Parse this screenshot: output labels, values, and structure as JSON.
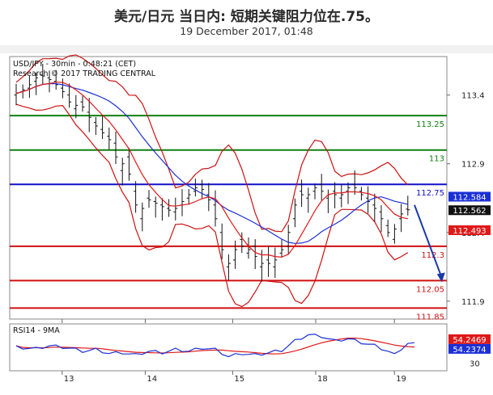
{
  "header": {
    "title": "美元/日元 当日内: 短期关键阻力位在.75。",
    "date": "19 December 2017, 01:48"
  },
  "chart_data": [
    {
      "type": "candlestick",
      "info_line1": "USD/JPY - 30min - 0:48:21 (CET)",
      "info_line2": "Research © 2017 TRADING CENTRAL",
      "y_ticks": [
        "113.4",
        "112.9",
        "112.4",
        "111.9"
      ],
      "ylim": [
        111.77,
        113.68
      ],
      "x_ticks": [
        "13",
        "14",
        "15",
        "18",
        "19"
      ],
      "levels": [
        {
          "value": 113.25,
          "label": "113.25",
          "color": "#108010"
        },
        {
          "value": 113.0,
          "label": "113",
          "color": "#108010"
        },
        {
          "value": 112.75,
          "label": "112.75",
          "color": "#1010c8"
        },
        {
          "value": 112.3,
          "label": "112.3",
          "color": "#d01010"
        },
        {
          "value": 112.05,
          "label": "112.05",
          "color": "#d01010"
        },
        {
          "value": 111.85,
          "label": "111.85",
          "color": "#d01010"
        }
      ],
      "price_tags": [
        {
          "value": 112.584,
          "label": "112.584",
          "color": "#1a2fd6"
        },
        {
          "value": 112.562,
          "label": "112.562",
          "color": "#111111"
        },
        {
          "value": 112.493,
          "label": "112.493",
          "color": "#e01818"
        }
      ],
      "projection": {
        "from": [
          60,
          112.6
        ],
        "to": [
          64,
          112.05
        ],
        "color": "#1a3aa8"
      },
      "price_path": [
        [
          0,
          113.4
        ],
        [
          2,
          113.45
        ],
        [
          4,
          113.55
        ],
        [
          6,
          113.5
        ],
        [
          8,
          113.4
        ],
        [
          9,
          113.3
        ],
        [
          10,
          113.35
        ],
        [
          12,
          113.2
        ],
        [
          14,
          113.1
        ],
        [
          15,
          113.05
        ],
        [
          16,
          112.85
        ],
        [
          17,
          112.95
        ],
        [
          18,
          112.7
        ],
        [
          19,
          112.5
        ],
        [
          20,
          112.65
        ],
        [
          22,
          112.6
        ],
        [
          24,
          112.55
        ],
        [
          26,
          112.65
        ],
        [
          28,
          112.75
        ],
        [
          30,
          112.6
        ],
        [
          31,
          112.4
        ],
        [
          32,
          112.15
        ],
        [
          33,
          112.2
        ],
        [
          34,
          112.35
        ],
        [
          35,
          112.25
        ],
        [
          36,
          112.3
        ],
        [
          37,
          112.15
        ],
        [
          38,
          112.2
        ],
        [
          39,
          112.15
        ],
        [
          40,
          112.25
        ],
        [
          41,
          112.3
        ],
        [
          42,
          112.5
        ],
        [
          43,
          112.7
        ],
        [
          44,
          112.65
        ],
        [
          45,
          112.7
        ],
        [
          46,
          112.75
        ],
        [
          47,
          112.65
        ],
        [
          48,
          112.7
        ],
        [
          49,
          112.65
        ],
        [
          50,
          112.7
        ],
        [
          51,
          112.75
        ],
        [
          52,
          112.7
        ],
        [
          53,
          112.65
        ],
        [
          54,
          112.6
        ],
        [
          55,
          112.55
        ],
        [
          56,
          112.45
        ],
        [
          57,
          112.35
        ],
        [
          58,
          112.5
        ],
        [
          59,
          112.57
        ],
        [
          60,
          112.56
        ]
      ],
      "bars": 60,
      "bollinger": true,
      "moving_averages": [
        "#1a2fd6",
        "#e01818"
      ]
    },
    {
      "type": "line",
      "indicator": "RSI14 - 9MA",
      "ylim": [
        20,
        80
      ],
      "y_ticks": [
        "30"
      ],
      "series": [
        {
          "name": "RSI14",
          "color": "#1a2fd6",
          "current_label": "54.2374",
          "current": 54.2374
        },
        {
          "name": "9MA",
          "color": "#e01818",
          "current_label": "54.2469",
          "current": 54.2469
        }
      ],
      "rsi_path": [
        [
          0,
          50
        ],
        [
          3,
          48
        ],
        [
          5,
          52
        ],
        [
          8,
          49
        ],
        [
          10,
          45
        ],
        [
          12,
          47
        ],
        [
          14,
          42
        ],
        [
          16,
          43
        ],
        [
          18,
          40
        ],
        [
          20,
          45
        ],
        [
          22,
          43
        ],
        [
          24,
          47
        ],
        [
          26,
          45
        ],
        [
          28,
          49
        ],
        [
          30,
          47
        ],
        [
          32,
          38
        ],
        [
          34,
          42
        ],
        [
          36,
          40
        ],
        [
          38,
          43
        ],
        [
          40,
          46
        ],
        [
          42,
          58
        ],
        [
          44,
          66
        ],
        [
          46,
          64
        ],
        [
          48,
          58
        ],
        [
          50,
          61
        ],
        [
          52,
          56
        ],
        [
          54,
          52
        ],
        [
          56,
          45
        ],
        [
          57,
          40
        ],
        [
          58,
          48
        ],
        [
          59,
          55
        ],
        [
          60,
          54
        ]
      ]
    }
  ]
}
